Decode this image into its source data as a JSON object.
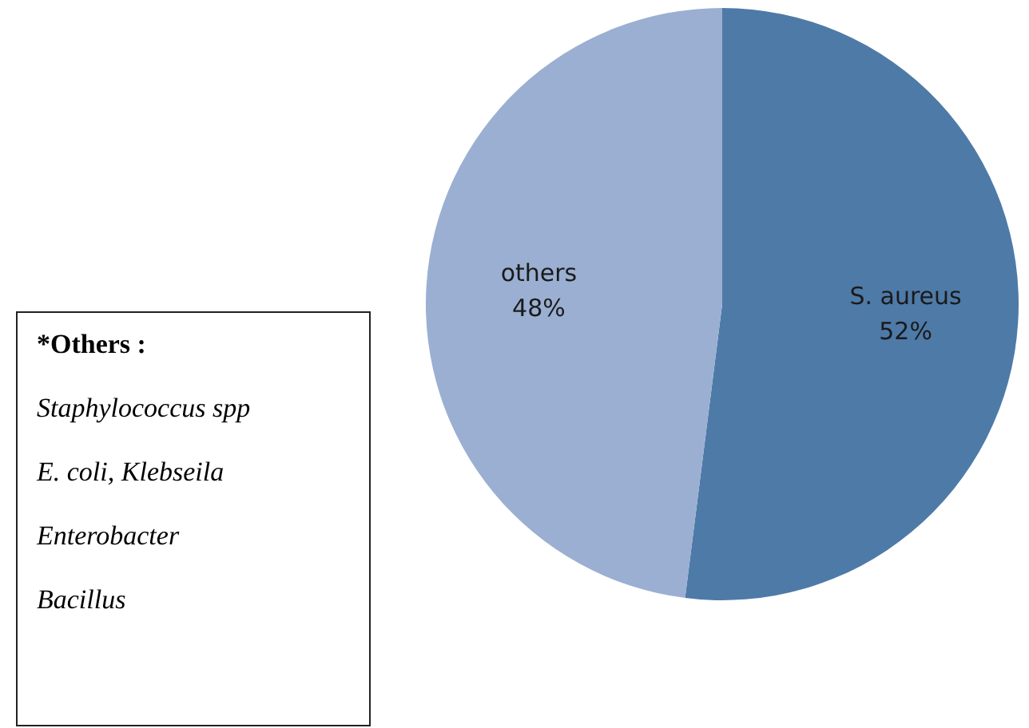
{
  "chart_data": {
    "type": "pie",
    "categories": [
      "S. aureus",
      "others"
    ],
    "values": [
      52,
      48
    ],
    "value_labels": [
      "52%",
      "48%"
    ],
    "colors": [
      "#4e7aa8",
      "#9aafd1"
    ],
    "legend": false,
    "annotations": [
      "*Others :",
      "Staphylococcus spp",
      "E. coli,  Klebseila",
      "Enterobacter",
      "Bacillus"
    ]
  }
}
